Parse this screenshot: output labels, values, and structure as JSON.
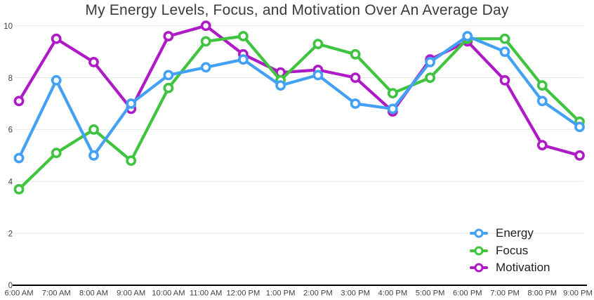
{
  "chart_data": {
    "type": "line",
    "title": "My Energy Levels, Focus, and Motivation Over An Average Day",
    "categories": [
      "6:00 AM",
      "7:00 AM",
      "8:00 AM",
      "9:00 AM",
      "10:00 AM",
      "11:00 AM",
      "12:00 PM",
      "1:00 PM",
      "2:00 PM",
      "3:00 PM",
      "4:00 PM",
      "5:00 PM",
      "6:00 PM",
      "7:00 PM",
      "8:00 PM",
      "9:00 PM"
    ],
    "series": [
      {
        "name": "Energy",
        "color": "#43a1f5",
        "values": [
          4.9,
          7.9,
          5.0,
          7.0,
          8.1,
          8.4,
          8.7,
          7.7,
          8.1,
          7.0,
          6.8,
          8.6,
          9.6,
          9.0,
          7.1,
          6.1
        ]
      },
      {
        "name": "Focus",
        "color": "#3ec43e",
        "values": [
          3.7,
          5.1,
          6.0,
          4.8,
          7.6,
          9.4,
          9.6,
          7.9,
          9.3,
          8.9,
          7.4,
          8.0,
          9.5,
          9.5,
          7.7,
          6.3
        ]
      },
      {
        "name": "Motivation",
        "color": "#ad1ac6",
        "values": [
          7.1,
          9.5,
          8.6,
          6.8,
          9.6,
          10.0,
          8.9,
          8.2,
          8.3,
          8.0,
          6.7,
          8.7,
          9.4,
          7.9,
          5.4,
          5.0
        ]
      }
    ],
    "xlabel": "",
    "ylabel": "",
    "ylim": [
      0,
      10
    ],
    "yticks": [
      0,
      2,
      4,
      6,
      8,
      10
    ],
    "grid": "horizontal-only",
    "marker_style": "open-circle",
    "legend_position": "bottom-right",
    "draw_order": [
      "Motivation",
      "Focus",
      "Energy"
    ]
  },
  "theme": {
    "background": "#ffffff",
    "grid_color": "#e8e8e8",
    "axis_line_color": "#000000",
    "tick_label_color": "#3f3f3f",
    "title_color": "#3a3a3a",
    "legend_text_color": "#1e1e1e"
  }
}
